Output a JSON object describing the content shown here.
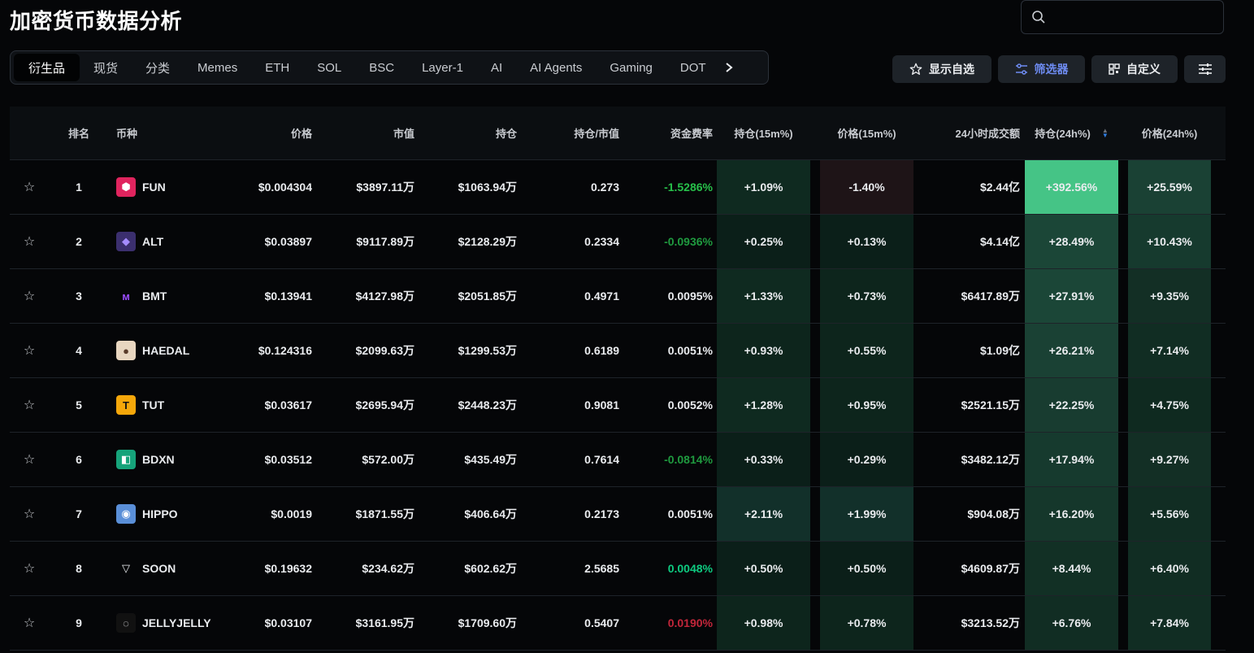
{
  "page": {
    "title": "加密货币数据分析"
  },
  "search": {
    "placeholder": ""
  },
  "tabs": [
    {
      "label": "衍生品",
      "active": true
    },
    {
      "label": "现货"
    },
    {
      "label": "分类"
    },
    {
      "label": "Memes"
    },
    {
      "label": "ETH"
    },
    {
      "label": "SOL"
    },
    {
      "label": "BSC"
    },
    {
      "label": "Layer-1"
    },
    {
      "label": "AI"
    },
    {
      "label": "AI Agents"
    },
    {
      "label": "Gaming"
    },
    {
      "label": "DOT"
    }
  ],
  "toolbar": {
    "watchlist_label": "显示自选",
    "filter_label": "筛选器",
    "customize_label": "自定义"
  },
  "colors": {
    "background": "#050608",
    "positive": "#2ebd85",
    "negative": "#f6465d",
    "funding_positive": "#0ecb81",
    "funding_negative_bright": "#27c04a",
    "accent": "#6e8cf2",
    "sort_active": "#2f7de1"
  },
  "table": {
    "headers": {
      "rank": "排名",
      "coin": "币种",
      "price": "价格",
      "market_cap": "市值",
      "open_interest": "持仓",
      "oi_mcap": "持仓/市值",
      "funding_rate": "资金费率",
      "oi_15m": "持仓(15m%)",
      "price_15m": "价格(15m%)",
      "volume_24h": "24小时成交额",
      "oi_24h": "持仓(24h%)",
      "price_24h": "价格(24h%)"
    },
    "rows": [
      {
        "rank": "1",
        "coin": "FUN",
        "price": "$0.004304",
        "market_cap": "$3897.11万",
        "open_interest": "$1063.94万",
        "oi_mcap": "0.273",
        "funding_rate": "-1.5286%",
        "funding_color": "#27c04a",
        "oi_15m": "+1.09%",
        "price_15m": "-1.40%",
        "volume_24h": "$2.44亿",
        "oi_24h": "+392.56%",
        "price_24h": "+25.59%",
        "icon": "fun-icon"
      },
      {
        "rank": "2",
        "coin": "ALT",
        "price": "$0.03897",
        "market_cap": "$9117.89万",
        "open_interest": "$2128.29万",
        "oi_mcap": "0.2334",
        "funding_rate": "-0.0936%",
        "funding_color": "#1f9a3f",
        "oi_15m": "+0.25%",
        "price_15m": "+0.13%",
        "volume_24h": "$4.14亿",
        "oi_24h": "+28.49%",
        "price_24h": "+10.43%",
        "icon": "alt-icon"
      },
      {
        "rank": "3",
        "coin": "BMT",
        "price": "$0.13941",
        "market_cap": "$4127.98万",
        "open_interest": "$2051.85万",
        "oi_mcap": "0.4971",
        "funding_rate": "0.0095%",
        "funding_color": "#eaecef",
        "oi_15m": "+1.33%",
        "price_15m": "+0.73%",
        "volume_24h": "$6417.89万",
        "oi_24h": "+27.91%",
        "price_24h": "+9.35%",
        "icon": "bmt-icon"
      },
      {
        "rank": "4",
        "coin": "HAEDAL",
        "price": "$0.124316",
        "market_cap": "$2099.63万",
        "open_interest": "$1299.53万",
        "oi_mcap": "0.6189",
        "funding_rate": "0.0051%",
        "funding_color": "#eaecef",
        "oi_15m": "+0.93%",
        "price_15m": "+0.55%",
        "volume_24h": "$1.09亿",
        "oi_24h": "+26.21%",
        "price_24h": "+7.14%",
        "icon": "haedal-icon"
      },
      {
        "rank": "5",
        "coin": "TUT",
        "price": "$0.03617",
        "market_cap": "$2695.94万",
        "open_interest": "$2448.23万",
        "oi_mcap": "0.9081",
        "funding_rate": "0.0052%",
        "funding_color": "#eaecef",
        "oi_15m": "+1.28%",
        "price_15m": "+0.95%",
        "volume_24h": "$2521.15万",
        "oi_24h": "+22.25%",
        "price_24h": "+4.75%",
        "icon": "tut-icon"
      },
      {
        "rank": "6",
        "coin": "BDXN",
        "price": "$0.03512",
        "market_cap": "$572.00万",
        "open_interest": "$435.49万",
        "oi_mcap": "0.7614",
        "funding_rate": "-0.0814%",
        "funding_color": "#1f9a3f",
        "oi_15m": "+0.33%",
        "price_15m": "+0.29%",
        "volume_24h": "$3482.12万",
        "oi_24h": "+17.94%",
        "price_24h": "+9.27%",
        "icon": "bdxn-icon"
      },
      {
        "rank": "7",
        "coin": "HIPPO",
        "price": "$0.0019",
        "market_cap": "$1871.55万",
        "open_interest": "$406.64万",
        "oi_mcap": "0.2173",
        "funding_rate": "0.0051%",
        "funding_color": "#eaecef",
        "oi_15m": "+2.11%",
        "price_15m": "+1.99%",
        "volume_24h": "$904.08万",
        "oi_24h": "+16.20%",
        "price_24h": "+5.56%",
        "icon": "hippo-icon"
      },
      {
        "rank": "8",
        "coin": "SOON",
        "price": "$0.19632",
        "market_cap": "$234.62万",
        "open_interest": "$602.62万",
        "oi_mcap": "2.5685",
        "funding_rate": "0.0048%",
        "funding_color": "#0ecb81",
        "oi_15m": "+0.50%",
        "price_15m": "+0.50%",
        "volume_24h": "$4609.87万",
        "oi_24h": "+8.44%",
        "price_24h": "+6.40%",
        "icon": "soon-icon"
      },
      {
        "rank": "9",
        "coin": "JELLYJELLY",
        "price": "$0.03107",
        "market_cap": "$3161.95万",
        "open_interest": "$1709.60万",
        "oi_mcap": "0.5407",
        "funding_rate": "0.0190%",
        "funding_color": "#c2263a",
        "oi_15m": "+0.98%",
        "price_15m": "+0.78%",
        "volume_24h": "$3213.52万",
        "oi_24h": "+6.76%",
        "price_24h": "+7.84%",
        "icon": "jellyjelly-icon"
      }
    ]
  }
}
